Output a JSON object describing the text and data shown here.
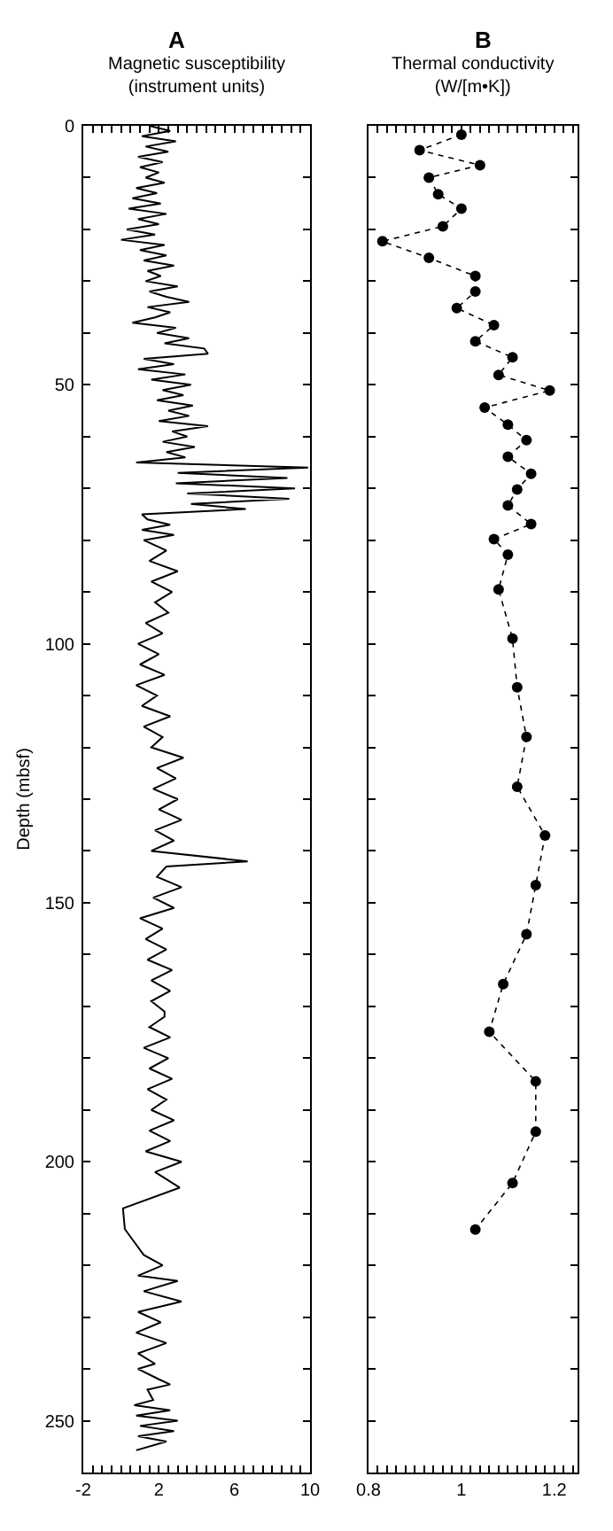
{
  "chart_data": [
    {
      "type": "line",
      "title": "A",
      "xlabel": "Magnetic susceptibility (instrument units)",
      "ylabel": "Depth (mbsf)",
      "series": [
        {
          "color": "#000000",
          "x": [
            1.5,
            2.6,
            1.1,
            2.9,
            1.3,
            2.5,
            0.9,
            2.2,
            1.0,
            2.0,
            1.3,
            2.3,
            0.8,
            1.9,
            0.6,
            2.1,
            0.4,
            2.4,
            0.9,
            2.0,
            0.3,
            1.8,
            0.0,
            2.3,
            1.0,
            2.4,
            1.2,
            2.8,
            1.4,
            2.1,
            1.3,
            3.0,
            1.5,
            2.4,
            3.6,
            1.4,
            2.6,
            1.8,
            0.6,
            2.9,
            1.9,
            3.6,
            2.3,
            4.4,
            4.6,
            1.2,
            2.8,
            0.9,
            3.4,
            1.6,
            3.7,
            2.2,
            3.3,
            1.9,
            3.8,
            2.5,
            3.6,
            2.0,
            4.6,
            2.7,
            3.5,
            2.2,
            3.9,
            2.4,
            3.4,
            0.8,
            9.9,
            3.0,
            8.8,
            2.9,
            9.2,
            3.5,
            8.9,
            3.7,
            6.6,
            1.1,
            1.4,
            2.6,
            1.1,
            2.8,
            1.2,
            2.4,
            1.5,
            3.0,
            1.6,
            2.7,
            1.8,
            2.5,
            1.3,
            2.2,
            0.9,
            2.0,
            1.0,
            2.3,
            0.8,
            1.9,
            1.1,
            2.6,
            1.2,
            2.2,
            1.6,
            3.3,
            1.9,
            2.9,
            1.7,
            3.0,
            2.0,
            3.2,
            1.8,
            2.8,
            1.6,
            6.7,
            2.4,
            1.9,
            3.2,
            1.7,
            2.8,
            1.0,
            2.2,
            1.3,
            2.4,
            1.4,
            2.7,
            1.6,
            2.6,
            1.6,
            2.3,
            2.3,
            1.5,
            2.6,
            1.2,
            2.5,
            1.5,
            2.7,
            1.4,
            2.4,
            1.6,
            2.8,
            1.5,
            2.6,
            1.3,
            3.2,
            1.8,
            3.1,
            0.1,
            0.2,
            0.8,
            1.2,
            2.2,
            0.9,
            3.0,
            1.2,
            3.2,
            0.9,
            2.1,
            0.8,
            2.4,
            0.9,
            1.8,
            0.9,
            2.0,
            2.6,
            1.4,
            1.7,
            0.7,
            2.6,
            0.8,
            3.0,
            1.0,
            2.8,
            0.9,
            2.4,
            0.8
          ],
          "values": [
            0,
            1,
            2,
            3,
            4,
            5,
            6,
            7,
            8,
            9,
            10,
            11,
            12,
            13,
            14,
            15,
            16,
            17,
            18,
            19,
            20,
            21,
            22,
            23,
            24,
            25,
            26,
            27,
            28,
            29,
            30,
            31,
            32,
            33,
            34,
            35,
            36,
            37,
            38,
            39,
            40,
            41,
            42,
            43,
            44,
            45,
            46,
            47,
            48,
            49,
            50,
            51,
            52,
            53,
            54,
            55,
            56,
            57,
            58,
            59,
            60,
            61,
            62,
            63,
            64,
            65,
            66,
            67,
            68,
            69,
            70,
            71,
            72,
            73,
            74,
            75,
            76,
            77,
            78,
            79,
            80,
            82,
            84,
            86,
            88,
            90,
            92,
            94,
            96,
            98,
            100,
            102,
            104,
            106,
            108,
            110,
            112,
            114,
            116,
            118,
            120,
            122,
            124,
            126,
            128,
            130,
            132,
            134,
            136,
            138,
            140,
            142,
            143,
            145,
            147,
            149,
            151,
            153,
            155,
            157,
            159,
            161,
            163,
            165,
            167,
            169,
            171,
            172,
            174,
            176,
            178,
            180,
            182,
            184,
            186,
            188,
            190,
            192,
            194,
            196,
            198,
            200,
            202,
            205,
            209,
            213,
            216,
            218,
            220,
            222,
            223,
            225,
            227,
            229,
            231,
            233,
            235,
            237,
            239,
            240,
            242,
            243,
            244,
            246,
            247,
            248,
            249,
            250,
            251,
            252,
            253,
            254,
            255.7
          ]
        }
      ],
      "xlim": [
        -2,
        10
      ],
      "xticks": [
        -2,
        {
          "value": -1.5,
          "label": null
        },
        {
          "value": -1,
          "label": null
        },
        {
          "value": -0.5,
          "label": null
        },
        {
          "value": 0,
          "label": null
        },
        {
          "value": 0.5,
          "label": null
        },
        {
          "value": 1,
          "label": null
        },
        {
          "value": 1.5,
          "label": null
        },
        2,
        {
          "value": 2.5,
          "label": null
        },
        {
          "value": 3,
          "label": null
        },
        {
          "value": 3.5,
          "label": null
        },
        {
          "value": 4,
          "label": null
        },
        {
          "value": 4.5,
          "label": null
        },
        {
          "value": 5,
          "label": null
        },
        {
          "value": 5.5,
          "label": null
        },
        6,
        {
          "value": 6.5,
          "label": null
        },
        {
          "value": 7,
          "label": null
        },
        {
          "value": 7.5,
          "label": null
        },
        {
          "value": 8,
          "label": null
        },
        {
          "value": 8.5,
          "label": null
        },
        {
          "value": 9,
          "label": null
        },
        {
          "value": 9.5,
          "label": null
        },
        10
      ],
      "ylim": [
        260,
        0
      ],
      "yticks": [
        0,
        {
          "value": 10,
          "label": null
        },
        {
          "value": 20,
          "label": null
        },
        {
          "value": 30,
          "label": null
        },
        {
          "value": 40,
          "label": null
        },
        50,
        {
          "value": 60,
          "label": null
        },
        {
          "value": 70,
          "label": null
        },
        {
          "value": 80,
          "label": null
        },
        {
          "value": 90,
          "label": null
        },
        100,
        {
          "value": 110,
          "label": null
        },
        {
          "value": 120,
          "label": null
        },
        {
          "value": 130,
          "label": null
        },
        {
          "value": 140,
          "label": null
        },
        150,
        {
          "value": 160,
          "label": null
        },
        {
          "value": 170,
          "label": null
        },
        {
          "value": 180,
          "label": null
        },
        {
          "value": 190,
          "label": null
        },
        200,
        {
          "value": 210,
          "label": null
        },
        {
          "value": 220,
          "label": null
        },
        {
          "value": 230,
          "label": null
        },
        {
          "value": 240,
          "label": null
        },
        250
      ],
      "grid": false,
      "marker": "none",
      "line_style": "solid"
    },
    {
      "type": "line",
      "title": "B",
      "xlabel": "Thermal conductivity (W/[m•K])",
      "series": [
        {
          "color": "#000000",
          "x": [
            1.0,
            0.91,
            1.04,
            0.93,
            0.95,
            1.0,
            0.96,
            0.83,
            0.93,
            1.03,
            1.03,
            0.99,
            1.07,
            1.03,
            1.11,
            1.08,
            1.19,
            1.05,
            1.1,
            1.14,
            1.1,
            1.15,
            1.12,
            1.1,
            1.15,
            1.07,
            1.1,
            1.08,
            1.11,
            1.12,
            1.14,
            1.12,
            1.18,
            1.16,
            1.14,
            1.09,
            1.06,
            1.16,
            1.16,
            1.11,
            1.03
          ],
          "values": [
            1.7,
            4.7,
            7.6,
            10,
            13.2,
            16,
            19.4,
            22.3,
            25.5,
            29,
            32,
            35.2,
            38.5,
            41.6,
            44.7,
            48.1,
            51.1,
            54.4,
            57.7,
            60.7,
            63.9,
            67.2,
            70.2,
            73.3,
            76.9,
            79.8,
            82.8,
            89.5,
            99,
            108.4,
            118,
            127.6,
            137,
            146.6,
            156.1,
            165.7,
            174.9,
            184.5,
            194.2,
            204.1,
            213.1
          ]
        }
      ],
      "xlim": [
        0.8,
        1.25
      ],
      "xticks": [
        0.8,
        {
          "value": 0.82,
          "label": null
        },
        {
          "value": 0.84,
          "label": null
        },
        {
          "value": 0.86,
          "label": null
        },
        {
          "value": 0.88,
          "label": null
        },
        {
          "value": 0.9,
          "label": null
        },
        {
          "value": 0.92,
          "label": null
        },
        {
          "value": 0.94,
          "label": null
        },
        {
          "value": 0.96,
          "label": null
        },
        {
          "value": 0.98,
          "label": null
        },
        1,
        {
          "value": 1.02,
          "label": null
        },
        {
          "value": 1.04,
          "label": null
        },
        {
          "value": 1.06,
          "label": null
        },
        {
          "value": 1.08,
          "label": null
        },
        {
          "value": 1.1,
          "label": null
        },
        {
          "value": 1.12,
          "label": null
        },
        {
          "value": 1.14,
          "label": null
        },
        {
          "value": 1.16,
          "label": null
        },
        {
          "value": 1.18,
          "label": null
        },
        1.2,
        {
          "value": 1.22,
          "label": null
        },
        {
          "value": 1.24,
          "label": null
        }
      ],
      "ylim": [
        260,
        0
      ],
      "yticks": [
        0,
        {
          "value": 10,
          "label": null
        },
        {
          "value": 20,
          "label": null
        },
        {
          "value": 30,
          "label": null
        },
        {
          "value": 40,
          "label": null
        },
        50,
        {
          "value": 60,
          "label": null
        },
        {
          "value": 70,
          "label": null
        },
        {
          "value": 80,
          "label": null
        },
        {
          "value": 90,
          "label": null
        },
        100,
        {
          "value": 110,
          "label": null
        },
        {
          "value": 120,
          "label": null
        },
        {
          "value": 130,
          "label": null
        },
        {
          "value": 140,
          "label": null
        },
        150,
        {
          "value": 160,
          "label": null
        },
        {
          "value": 170,
          "label": null
        },
        {
          "value": 180,
          "label": null
        },
        {
          "value": 190,
          "label": null
        },
        200,
        {
          "value": 210,
          "label": null
        },
        {
          "value": 220,
          "label": null
        },
        {
          "value": 230,
          "label": null
        },
        {
          "value": 240,
          "label": null
        },
        250
      ],
      "tick_labels": "x",
      "grid": false,
      "marker": "circle",
      "line_style": "dotted"
    }
  ]
}
